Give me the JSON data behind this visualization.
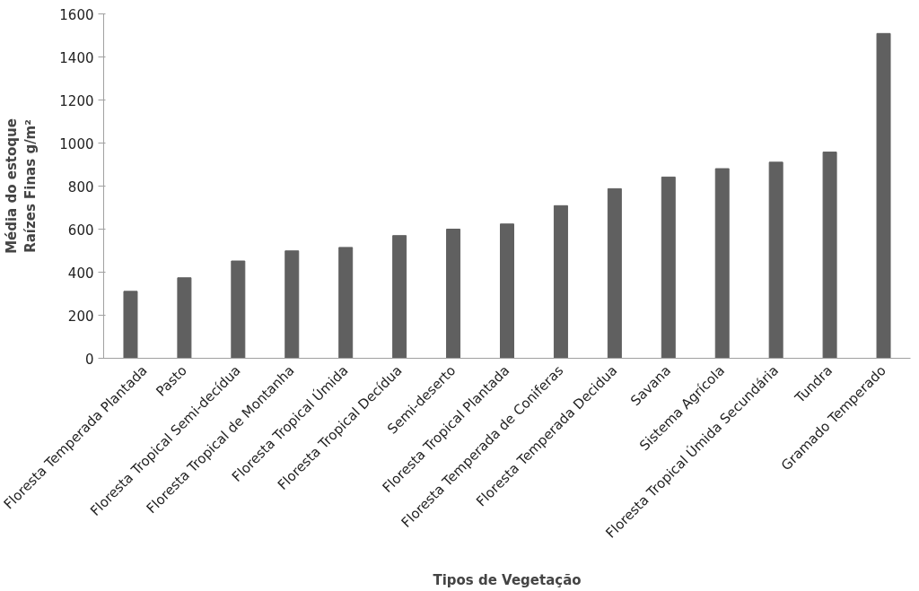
{
  "chart_data": {
    "type": "bar",
    "xlabel": "Tipos de Vegetação",
    "ylabel": "Média do estoque\nRaízes Finas g/m²",
    "categories": [
      "Floresta Temperada Plantada",
      "Pasto",
      "Floresta Tropical Semi-decídua",
      "Floresta Tropical de Montanha",
      "Floresta Tropical Úmida",
      "Floresta Tropical Decídua",
      "Semi-deserto",
      "Floresta Tropical Plantada",
      "Floresta Temperada de Coniferas",
      "Floresta Temperada Decidua",
      "Savana",
      "Sistema Agrícola",
      "Floresta Tropical Úmida Secundária",
      "Tundra",
      "Gramado Temperado"
    ],
    "values": [
      311,
      374,
      452,
      499,
      515,
      570,
      600,
      624,
      709,
      788,
      842,
      881,
      911,
      958,
      1509
    ],
    "color": "#606060",
    "ylim": [
      0,
      1600
    ],
    "yticks": [
      0,
      200,
      400,
      600,
      800,
      1000,
      1200,
      1400,
      1600
    ],
    "grid": false
  }
}
